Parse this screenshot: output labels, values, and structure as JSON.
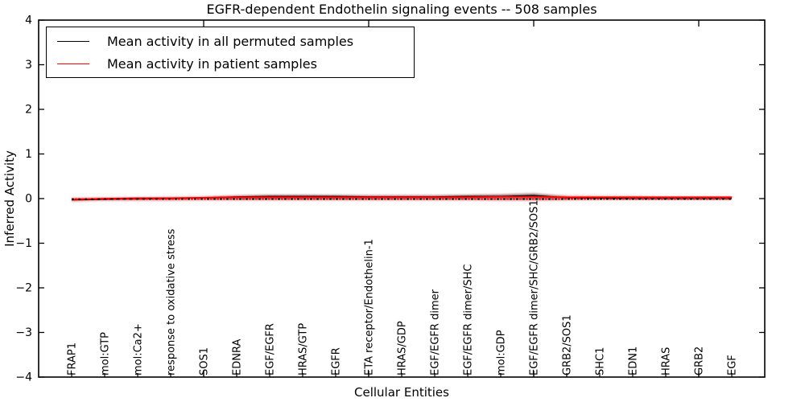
{
  "chart_data": {
    "type": "line",
    "title": "EGFR-dependent Endothelin signaling events -- 508 samples",
    "xlabel": "Cellular Entities",
    "ylabel": "Inferred Activity",
    "ylim": [
      -4,
      4
    ],
    "xlim": [
      0,
      22
    ],
    "grid": false,
    "legend_position": "upper left",
    "yticks": [
      {
        "value": 4,
        "label": "4"
      },
      {
        "value": 3,
        "label": "3"
      },
      {
        "value": 2,
        "label": "2"
      },
      {
        "value": 1,
        "label": "1"
      },
      {
        "value": 0,
        "label": "0"
      },
      {
        "value": -1,
        "label": "−1"
      },
      {
        "value": -2,
        "label": "−2"
      },
      {
        "value": -3,
        "label": "−3"
      },
      {
        "value": -4,
        "label": "−4"
      }
    ],
    "x_major_ticks": [
      5,
      10,
      15,
      20
    ],
    "categories": [
      "FRAP1",
      "mol:GTP",
      "mol:Ca2+",
      "response to oxidative stress",
      "SOS1",
      "EDNRA",
      "EGF/EGFR",
      "HRAS/GTP",
      "EGFR",
      "ETA receptor/Endothelin-1",
      "HRAS/GDP",
      "EGF/EGFR dimer",
      "EGF/EGFR dimer/SHC",
      "mol:GDP",
      "EGF/EGFR dimer/SHC/GRB2/SOS1",
      "GRB2/SOS1",
      "SHC1",
      "EDN1",
      "HRAS",
      "GRB2",
      "EGF"
    ],
    "series": [
      {
        "name": "Mean activity in all permuted samples",
        "color": "#000000",
        "style": "solid",
        "width": 1.3,
        "values": [
          -0.03,
          -0.02,
          -0.01,
          0.0,
          0.02,
          0.04,
          0.05,
          0.05,
          0.05,
          0.04,
          0.04,
          0.04,
          0.05,
          0.05,
          0.07,
          0.02,
          0.01,
          0.0,
          0.0,
          0.0,
          0.0
        ]
      },
      {
        "name": "Mean activity in patient samples",
        "color": "#ff0000",
        "style": "solid",
        "width": 1.8,
        "values": [
          -0.02,
          0.0,
          0.01,
          0.01,
          0.02,
          0.03,
          0.03,
          0.03,
          0.03,
          0.03,
          0.03,
          0.03,
          0.03,
          0.04,
          0.04,
          0.03,
          0.03,
          0.03,
          0.03,
          0.03,
          0.03
        ]
      },
      {
        "name": "permuted baseline dotted",
        "color": "#000000",
        "style": "dotted",
        "width": 1.9,
        "dashoffset": 0,
        "values": [
          -0.01,
          -0.01,
          -0.01,
          -0.01,
          -0.01,
          -0.01,
          -0.01,
          -0.01,
          -0.01,
          -0.01,
          -0.01,
          -0.01,
          -0.01,
          -0.01,
          -0.01,
          -0.01,
          -0.01,
          -0.01,
          -0.01,
          -0.01,
          -0.01
        ]
      },
      {
        "name": "patient baseline dotted",
        "color": "#ff0000",
        "style": "dotted",
        "width": 1.9,
        "dashoffset": 4,
        "values": [
          -0.01,
          -0.01,
          -0.01,
          -0.01,
          -0.01,
          -0.01,
          -0.01,
          -0.01,
          -0.01,
          -0.01,
          -0.01,
          -0.01,
          -0.01,
          -0.01,
          -0.01,
          -0.01,
          -0.01,
          -0.01,
          -0.01,
          -0.01,
          -0.01
        ]
      }
    ],
    "bands": [
      {
        "name": "patient std band",
        "color": "rgba(255,0,0,0.38)",
        "blur": 1.0,
        "start_index": 0,
        "upper": [
          0.02,
          0.03,
          0.03,
          0.04,
          0.05,
          0.07,
          0.08,
          0.08,
          0.07,
          0.07,
          0.07,
          0.07,
          0.08,
          0.09,
          0.1,
          0.07,
          0.06,
          0.06,
          0.05,
          0.05,
          0.05
        ],
        "lower": [
          -0.07,
          -0.05,
          -0.05,
          -0.05,
          -0.04,
          -0.04,
          -0.04,
          -0.04,
          -0.04,
          -0.04,
          -0.04,
          -0.04,
          -0.04,
          -0.05,
          -0.05,
          -0.04,
          -0.03,
          -0.03,
          -0.03,
          -0.03,
          -0.03
        ]
      },
      {
        "name": "permuted std band",
        "color": "rgba(55,55,55,0.45)",
        "blur": 1.3,
        "start_index": 4,
        "upper": [
          0.03,
          0.06,
          0.08,
          0.08,
          0.08,
          0.07,
          0.07,
          0.07,
          0.08,
          0.09,
          0.12,
          0.04
        ],
        "lower": [
          0.0,
          0.0,
          0.0,
          0.0,
          0.0,
          0.0,
          0.0,
          0.0,
          0.0,
          0.0,
          -0.01,
          0.0
        ]
      }
    ],
    "legend": {
      "entries": [
        {
          "label": "Mean activity in all permuted samples",
          "color": "#000000"
        },
        {
          "label": "Mean activity in patient samples",
          "color": "#ff0000"
        }
      ]
    }
  }
}
